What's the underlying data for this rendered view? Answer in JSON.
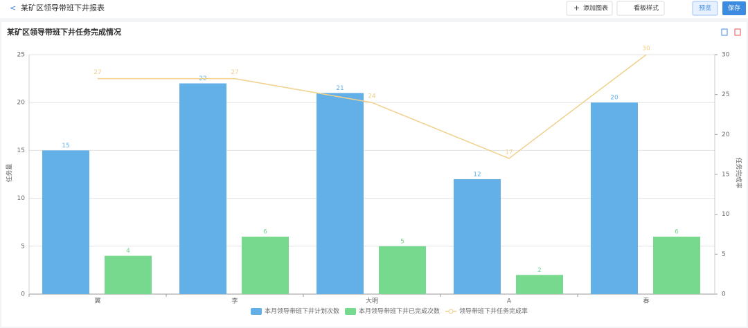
{
  "header": {
    "back": "<",
    "title": "某矿区领导带班下井报表",
    "buttons": [
      "添加图表",
      "看板样式",
      "预览",
      "保存"
    ]
  },
  "card": {
    "title": "某矿区领导带班下井任务完成情况"
  },
  "chart_data": {
    "type": "bar-line",
    "categories": [
      "翼",
      "李",
      "大明",
      "A",
      "春"
    ],
    "ylabel": "任务量",
    "y2label": "任务完成率",
    "ylim": [
      0,
      25
    ],
    "yticks": [
      0,
      5,
      10,
      15,
      20,
      25
    ],
    "y2lim": [
      0,
      30
    ],
    "y2ticks": [
      0,
      5,
      10,
      15,
      20,
      25,
      30
    ],
    "grid": true,
    "legend": "bottom",
    "series": [
      {
        "name": "本月领导带班下井计划次数",
        "type": "bar",
        "color": "#63b0e8",
        "values": [
          15,
          22,
          21,
          12,
          20
        ]
      },
      {
        "name": "本月领导带班下井已完成次数",
        "type": "bar",
        "color": "#76d98e",
        "values": [
          4,
          6,
          5,
          2,
          6
        ]
      },
      {
        "name": "领导带班下井任务完成率",
        "type": "line",
        "axis": "y2",
        "color": "#f0d08a",
        "values": [
          27,
          27,
          24,
          17,
          30
        ]
      }
    ]
  }
}
